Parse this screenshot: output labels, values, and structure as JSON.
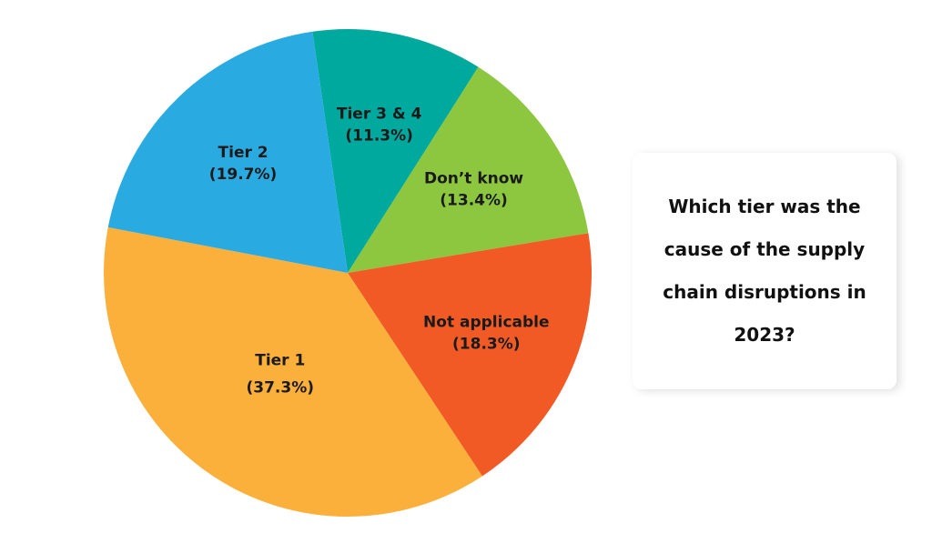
{
  "chart_data": {
    "type": "pie",
    "title": "Which tier was the cause of the supply chain disruptions in 2023?",
    "categories": [
      "Tier 3 & 4",
      "Don’t know",
      "Not applicable",
      "Tier 1",
      "Tier 2"
    ],
    "values": [
      11.3,
      13.4,
      18.3,
      37.3,
      19.7
    ],
    "value_labels": [
      "(11.3%)",
      "(13.4%)",
      "(18.3%)",
      "(37.3%)",
      "(19.7%)"
    ],
    "colors": [
      "#00a99d",
      "#8dc63f",
      "#f15a24",
      "#fbb03b",
      "#29abe2"
    ]
  }
}
